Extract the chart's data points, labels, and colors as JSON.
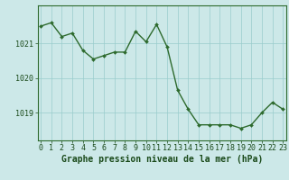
{
  "x": [
    0,
    1,
    2,
    3,
    4,
    5,
    6,
    7,
    8,
    9,
    10,
    11,
    12,
    13,
    14,
    15,
    16,
    17,
    18,
    19,
    20,
    21,
    22,
    23
  ],
  "y": [
    1021.5,
    1021.6,
    1021.2,
    1021.3,
    1020.8,
    1020.55,
    1020.65,
    1020.75,
    1020.75,
    1021.35,
    1021.05,
    1021.55,
    1020.9,
    1019.65,
    1019.1,
    1018.65,
    1018.65,
    1018.65,
    1018.65,
    1018.55,
    1018.65,
    1019.0,
    1019.3,
    1019.1
  ],
  "line_color": "#2d6a2d",
  "marker_color": "#2d6a2d",
  "bg_color": "#cce8e8",
  "grid_color": "#99cccc",
  "xlabel": "Graphe pression niveau de la mer (hPa)",
  "xlabel_color": "#1a4a1a",
  "tick_color": "#1a4a1a",
  "axis_color": "#2d6a2d",
  "yticks": [
    1019,
    1020,
    1021
  ],
  "ylim": [
    1018.2,
    1022.1
  ],
  "xlim": [
    -0.3,
    23.3
  ],
  "xticks": [
    0,
    1,
    2,
    3,
    4,
    5,
    6,
    7,
    8,
    9,
    10,
    11,
    12,
    13,
    14,
    15,
    16,
    17,
    18,
    19,
    20,
    21,
    22,
    23
  ],
  "xtick_labels": [
    "0",
    "1",
    "2",
    "3",
    "4",
    "5",
    "6",
    "7",
    "8",
    "9",
    "10",
    "11",
    "12",
    "13",
    "14",
    "15",
    "16",
    "17",
    "18",
    "19",
    "20",
    "21",
    "22",
    "23"
  ],
  "fontsize_xlabel": 7.0,
  "fontsize_ticks": 6.0,
  "linewidth": 1.0,
  "markersize": 2.0
}
